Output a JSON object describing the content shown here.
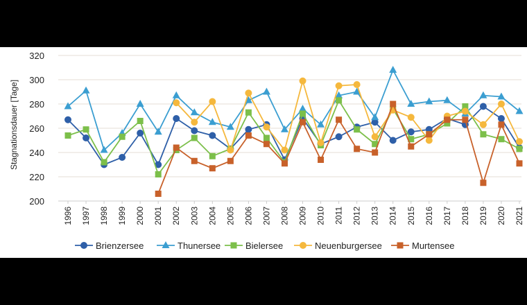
{
  "chart_data": {
    "type": "line",
    "title": "",
    "xlabel": "",
    "ylabel": "Stagnationsdauer [Tage]",
    "ylim": [
      200,
      320
    ],
    "yticks": [
      200,
      220,
      240,
      260,
      280,
      300,
      320
    ],
    "grid": true,
    "legend_position": "bottom",
    "x": [
      "1996",
      "1997",
      "1998",
      "1999",
      "2000",
      "2001",
      "2002",
      "2003",
      "2004",
      "2005",
      "2006",
      "2007",
      "2008",
      "2009",
      "2010",
      "2011",
      "2012",
      "2013",
      "2014",
      "2015",
      "2016",
      "2017",
      "2018",
      "2019",
      "2020",
      "2021"
    ],
    "series": [
      {
        "name": "Brienzersee",
        "color": "#2e5fa8",
        "marker": "circle",
        "values": [
          267,
          252,
          230,
          236,
          256,
          230,
          268,
          258,
          254,
          243,
          259,
          263,
          234,
          268,
          247,
          253,
          261,
          265,
          250,
          257,
          259,
          268,
          263,
          278,
          268,
          244
        ]
      },
      {
        "name": "Thunersee",
        "color": "#3b9ed1",
        "marker": "triangle",
        "values": [
          278,
          291,
          242,
          256,
          280,
          257,
          287,
          273,
          265,
          261,
          283,
          290,
          259,
          276,
          263,
          287,
          290,
          269,
          308,
          280,
          282,
          283,
          272,
          287,
          286,
          274
        ]
      },
      {
        "name": "Bielersee",
        "color": "#7cbf4a",
        "marker": "square",
        "values": [
          254,
          259,
          232,
          253,
          266,
          222,
          242,
          252,
          237,
          243,
          273,
          252,
          232,
          272,
          246,
          283,
          259,
          247,
          276,
          251,
          255,
          264,
          278,
          255,
          251,
          243
        ]
      },
      {
        "name": "Neuenburgersee",
        "color": "#f5b83d",
        "marker": "circle",
        "values": [
          null,
          null,
          null,
          null,
          null,
          null,
          281,
          265,
          282,
          242,
          289,
          261,
          242,
          299,
          248,
          295,
          296,
          253,
          275,
          269,
          250,
          270,
          274,
          263,
          280,
          249
        ]
      },
      {
        "name": "Murtensee",
        "color": "#c8612a",
        "marker": "square",
        "values": [
          null,
          null,
          null,
          null,
          null,
          206,
          244,
          233,
          227,
          233,
          254,
          247,
          231,
          265,
          234,
          267,
          243,
          240,
          280,
          245,
          255,
          267,
          267,
          215,
          263,
          231
        ]
      }
    ]
  }
}
